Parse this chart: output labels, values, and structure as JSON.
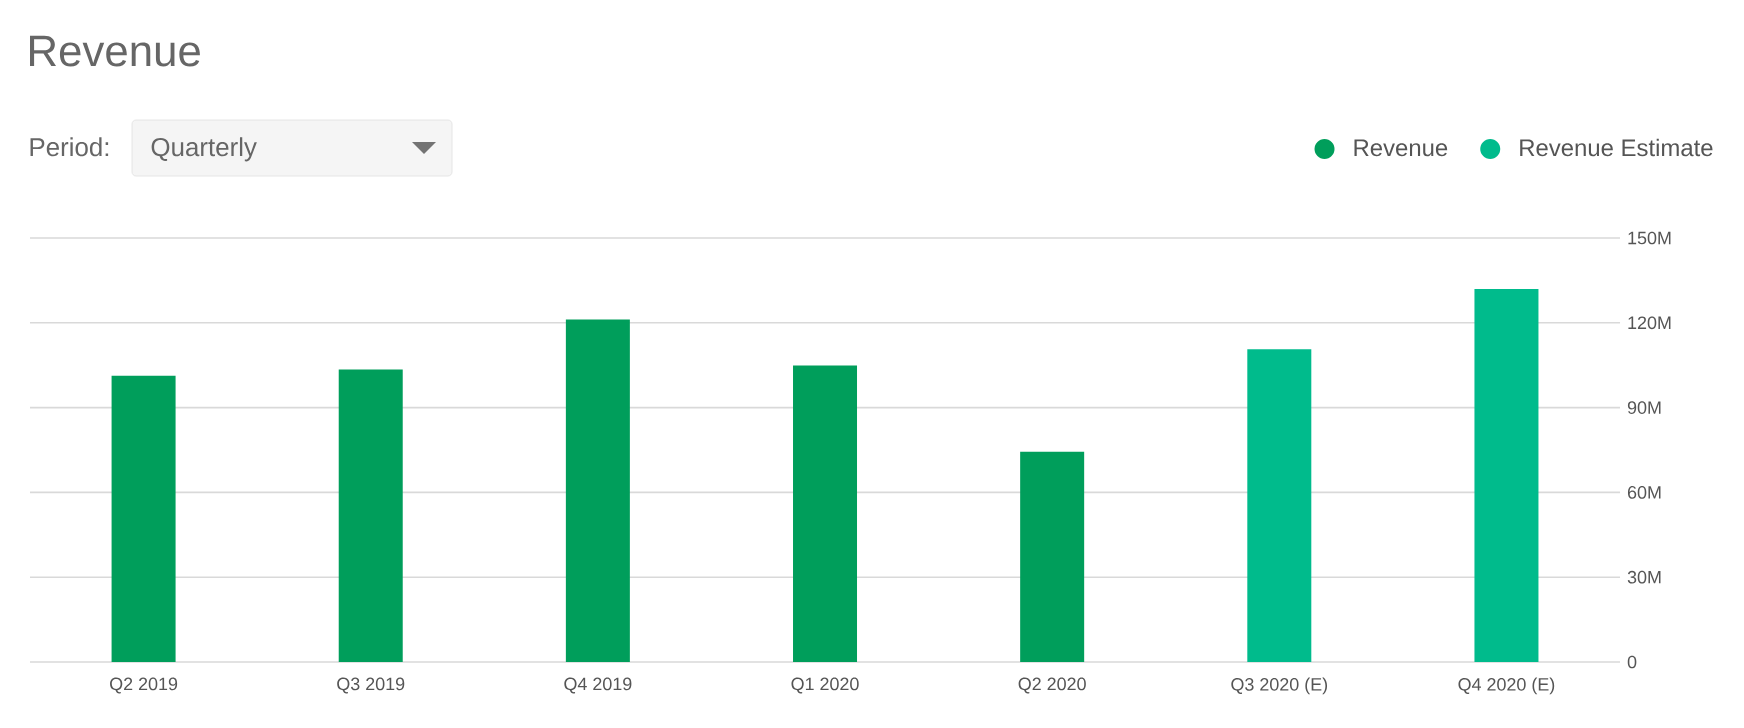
{
  "chart_data": {
    "type": "bar",
    "title": "Revenue",
    "annotations": [
      "Period:",
      "Quarterly"
    ],
    "categories": [
      "Q2 2019",
      "Q3 2019",
      "Q4 2019",
      "Q1 2020",
      "Q2 2020",
      "Q3 2020 (E)",
      "Q4 2020 (E)"
    ],
    "series": [
      {
        "name": "Revenue",
        "color": "#009e5b",
        "values": [
          101.3,
          103.5,
          121.2,
          104.9,
          74.4,
          null,
          null
        ]
      },
      {
        "name": "Revenue Estimate",
        "color": "#00bb8c",
        "values": [
          null,
          null,
          null,
          null,
          null,
          110.6,
          132.0
        ]
      }
    ],
    "ylim": [
      0,
      150
    ],
    "yticks": [
      0,
      {
        "value": 30,
        "label": "30M"
      },
      {
        "value": 60,
        "label": "60M"
      },
      {
        "value": 90,
        "label": "90M"
      },
      {
        "value": 120,
        "label": "120M"
      },
      {
        "value": 150,
        "label": "150M"
      }
    ],
    "grid": "y",
    "legend": "top right",
    "marker": "circle"
  }
}
